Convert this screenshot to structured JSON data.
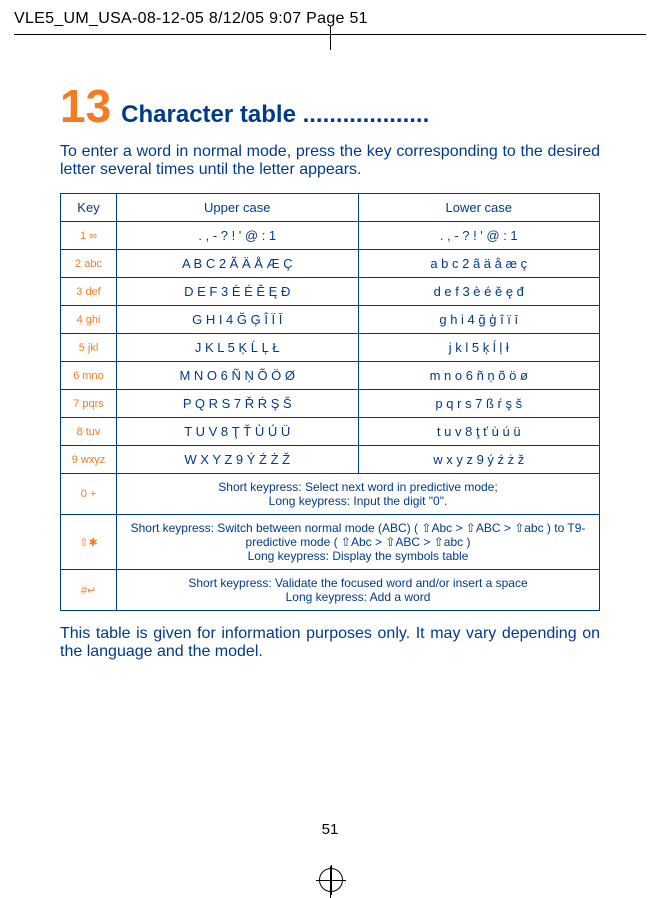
{
  "topHeader": "VLE5_UM_USA-08-12-05  8/12/05  9:07  Page 51",
  "heading": {
    "num": "13",
    "title": "Character table ..................."
  },
  "intro": "To enter a word in normal mode, press the key corresponding to the desired letter several times until the letter appears.",
  "columns": {
    "key": "Key",
    "upper": "Upper case",
    "lower": "Lower case"
  },
  "rows": [
    {
      "key": "1  ∞",
      "upper": ". , - ? ! ' @ : 1",
      "lower": ". , - ? ! ' @ : 1"
    },
    {
      "key": "2 abc",
      "upper": "A B C 2 Ã Ä Å Æ Ç",
      "lower": "a b c 2 ã ä å æ ç"
    },
    {
      "key": "3 def",
      "upper": "D E F 3 È É Ě Ę Đ",
      "lower": "d e f 3 è é ě ę đ"
    },
    {
      "key": "4 ghi",
      "upper": "G H I 4 Ğ Ģ Î Ï Ī",
      "lower": "g h i 4 ğ ģ î ï ī"
    },
    {
      "key": "5 jkl",
      "upper": "J K L 5 Ķ Ĺ Ļ Ł",
      "lower": "j k l 5 ķ ĺ ļ ł"
    },
    {
      "key": "6 mno",
      "upper": "M N O 6 Ñ Ņ Õ Ö Ø",
      "lower": "m n o 6 ñ ņ õ ö ø"
    },
    {
      "key": "7 pqrs",
      "upper": "P Q R S 7 Ř Ŕ Ş Š",
      "lower": "p q r s 7 ß ŕ ş š"
    },
    {
      "key": "8 tuv",
      "upper": "T U V 8 Ţ Ť Ù Ú Ü",
      "lower": "t u v 8 ţ ť ù ú ü"
    },
    {
      "key": "9 wxyz",
      "upper": "W X Y Z 9 Ý Ź Ż Ž",
      "lower": "w x y z 9 ý ź ż ž"
    }
  ],
  "funcRows": [
    {
      "key": "0 +",
      "desc": "Short keypress: Select next word in predictive mode;\nLong keypress: Input the digit \"0\"."
    },
    {
      "key": "⇧✱",
      "desc": "Short keypress: Switch between normal mode (ABC) ( ⇧Abc  >  ⇧ABC  >  ⇧abc ) to T9-predictive mode ( ⇧Abc  >  ⇧ABC  >  ⇧abc )\nLong keypress: Display the symbols table"
    },
    {
      "key": "#↵",
      "desc": "Short keypress: Validate the focused word and/or insert a space\nLong keypress: Add a word"
    }
  ],
  "footnote": "This table is given for information purposes only. It may vary depending on the language and the model.",
  "pagenum": "51"
}
